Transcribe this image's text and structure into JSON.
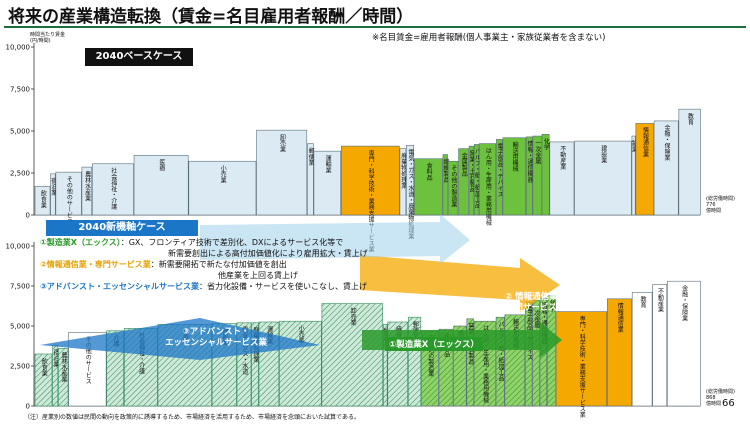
{
  "page": {
    "title": "将来の産業構造転換（賃金=名目雇用者報酬／時間）",
    "subtitle": "※名目賃金=雇用者報酬(個人事業主・家族従業者を含まない)",
    "unit_label": "時間当たり賃金\n(円/時間)",
    "case_base": "2040ベースケース",
    "case_new": "2040新機軸ケース",
    "legend": {
      "l1_key": "①製造業X（エックス）",
      "l1_text": "：GX、フロンティア技術で差別化、DXによるサービス化等で",
      "l1_text2": "新需要創出による高付加価値化により雇用拡大・賃上げ",
      "l2_key": "②情報通信業・専門サービス業",
      "l2_text": "：新需要開拓で新たな付加価値を創出",
      "l2_text2": "他産業を上回る賃上げ",
      "l3_key": "③アドバンスト・エッセンシャルサービス業",
      "l3_text": "：省力化設備・サービスを使いこなし、賃上げ"
    },
    "callouts": {
      "c1": "①製造業X（エックス）",
      "c2": "② 情報通信業、\n専門サービス業",
      "c3": "③アドバンスト・\nエッセンシャルサービス業"
    },
    "hours_base": "(総労働時間)\n776\n億時間",
    "hours_new": "(総労働時間)\n868\n億時間",
    "footnote": "（注）産業別の数値は民間の動向を政策的に誘導するため、市場経済を活用するため、市場経済を念頭においた試算である。",
    "page_number": "66"
  },
  "chart_data": [
    {
      "type": "bar",
      "title": "2040ベースケース",
      "ylabel": "時間当たり賃金(円/時間)",
      "ylim": [
        0,
        10000
      ],
      "yticks": [
        0,
        2500,
        5000,
        7500,
        10000
      ],
      "ytick_labels": [
        "0",
        "2,500",
        "5,000",
        "7,500",
        "10,000"
      ],
      "xlabel": "総労働時間",
      "bars": [
        {
          "label": "飲食業",
          "value": 1700,
          "width": 12,
          "category": "other"
        },
        {
          "label": "宿泊業",
          "value": 2450,
          "width": 4,
          "category": "other"
        },
        {
          "label": "その他のサービス",
          "value": 2550,
          "width": 20,
          "category": "other"
        },
        {
          "label": "農林水産業",
          "value": 2850,
          "width": 8,
          "category": "other"
        },
        {
          "label": "社会福祉・介護",
          "value": 3050,
          "width": 32,
          "category": "other"
        },
        {
          "label": "医療",
          "value": 3550,
          "width": 42,
          "category": "other"
        },
        {
          "label": "小売業",
          "value": 3200,
          "width": 52,
          "category": "other"
        },
        {
          "label": "卸売業",
          "value": 5050,
          "width": 39,
          "category": "other"
        },
        {
          "label": "郵便業",
          "value": 4250,
          "width": 5,
          "category": "other"
        },
        {
          "label": "運輸業",
          "value": 3800,
          "width": 21,
          "category": "other"
        },
        {
          "label": "専門・科学技術・業務支援サービス業",
          "value": 4100,
          "width": 45,
          "category": "info"
        },
        {
          "label": "廃棄物処理業",
          "value": 3950,
          "width": 5,
          "category": "other"
        },
        {
          "label": "電気・ガス・水道・廃棄物処理業",
          "value": 4150,
          "width": 6,
          "category": "other"
        },
        {
          "label": "食料品",
          "value": 3350,
          "width": 22,
          "category": "mfg"
        },
        {
          "label": "繊維製品",
          "value": 3600,
          "width": 4,
          "category": "mfg"
        },
        {
          "label": "その他の製造業",
          "value": 3200,
          "width": 8,
          "category": "mfg"
        },
        {
          "label": "金属製品",
          "value": 3950,
          "width": 8,
          "category": "mfg"
        },
        {
          "label": "窯業・土石製品",
          "value": 4100,
          "width": 4,
          "category": "mfg"
        },
        {
          "label": "パルプ・紙・紙加工品",
          "value": 4200,
          "width": 4,
          "category": "mfg"
        },
        {
          "label": "はん用・生産用・業務用機械",
          "value": 4250,
          "width": 13,
          "category": "mfg"
        },
        {
          "label": "電子部品・デバイス",
          "value": 4500,
          "width": 5,
          "category": "mfg"
        },
        {
          "label": "輸送用機械",
          "value": 4600,
          "width": 18,
          "category": "mfg"
        },
        {
          "label": "情報・通信機器",
          "value": 4650,
          "width": 5,
          "category": "mfg"
        },
        {
          "label": "一次金属",
          "value": 4700,
          "width": 7,
          "category": "mfg"
        },
        {
          "label": "化学",
          "value": 4800,
          "width": 6,
          "category": "mfg"
        },
        {
          "label": "不動産業",
          "value": 4350,
          "width": 19,
          "category": "other"
        },
        {
          "label": "建設業",
          "value": 4400,
          "width": 44,
          "category": "other"
        },
        {
          "label": "鉱業",
          "value": 4700,
          "width": 3,
          "category": "other"
        },
        {
          "label": "情報通信業",
          "value": 5450,
          "width": 14,
          "category": "info"
        },
        {
          "label": "金融・保険業",
          "value": 5600,
          "width": 19,
          "category": "other"
        },
        {
          "label": "教育",
          "value": 6300,
          "width": 17,
          "category": "other"
        }
      ]
    },
    {
      "type": "bar",
      "title": "2040新機軸ケース",
      "ylabel": "時間当たり賃金(円/時間)",
      "ylim": [
        0,
        10000
      ],
      "yticks": [
        0,
        2500,
        5000,
        7500,
        10000
      ],
      "ytick_labels": [
        "0",
        "2,500",
        "5,000",
        "7,500",
        "10,000"
      ],
      "xlabel": "総労働時間",
      "bars": [
        {
          "label": "飲食業",
          "value": 3250,
          "width": 12,
          "category": "ess"
        },
        {
          "label": "宿泊業",
          "value": 3800,
          "width": 4,
          "category": "ess"
        },
        {
          "label": "農林水産業",
          "value": 3600,
          "width": 7,
          "category": "ess"
        },
        {
          "label": "その他のサービス",
          "value": 4600,
          "width": 26,
          "category": "other"
        },
        {
          "label": "介護",
          "value": 4700,
          "width": 12,
          "category": "ess"
        },
        {
          "label": "社会福祉・介護",
          "value": 4850,
          "width": 23,
          "category": "ess"
        },
        {
          "label": "医療",
          "value": 5100,
          "width": 37,
          "category": "ess"
        },
        {
          "label": "建設業",
          "value": 5150,
          "width": 17,
          "category": "ess"
        },
        {
          "label": "電気・ガス・水道",
          "value": 5200,
          "width": 10,
          "category": "ess"
        },
        {
          "label": "廃棄物処理業",
          "value": 5200,
          "width": 5,
          "category": "ess"
        },
        {
          "label": "運輸業",
          "value": 5250,
          "width": 14,
          "category": "ess"
        },
        {
          "label": "小売業",
          "value": 5300,
          "width": 29,
          "category": "ess"
        },
        {
          "label": "卸売業",
          "value": 6400,
          "width": 42,
          "category": "ess"
        },
        {
          "label": "鉱業",
          "value": 5100,
          "width": 3,
          "category": "ess"
        },
        {
          "label": "繊維製品",
          "value": 5250,
          "width": 14,
          "category": "ess"
        },
        {
          "label": "郵便業",
          "value": 5550,
          "width": 9,
          "category": "ess"
        },
        {
          "label": "その他の製造業",
          "value": 4700,
          "width": 12,
          "category": "mfg"
        },
        {
          "label": "金属製品",
          "value": 4800,
          "width": 10,
          "category": "mfg"
        },
        {
          "label": "食料品",
          "value": 5000,
          "width": 9,
          "category": "mfg"
        },
        {
          "label": "窯業・土石製品",
          "value": 5450,
          "width": 5,
          "category": "mfg"
        },
        {
          "label": "はん用・生産用・業務用機械",
          "value": 5300,
          "width": 15,
          "category": "mfg"
        },
        {
          "label": "パルプ・紙・紙加工品",
          "value": 5550,
          "width": 6,
          "category": "mfg"
        },
        {
          "label": "輸送用機械",
          "value": 5700,
          "width": 14,
          "category": "mfg"
        },
        {
          "label": "電子部品・デバイス",
          "value": 6500,
          "width": 5,
          "category": "mfg"
        },
        {
          "label": "一次金属",
          "value": 6600,
          "width": 5,
          "category": "mfg"
        },
        {
          "label": "情報・通信機器",
          "value": 6750,
          "width": 5,
          "category": "mfg"
        },
        {
          "label": "化学",
          "value": 6900,
          "width": 6,
          "category": "mfg"
        },
        {
          "label": "専門・科学技術・業務支援サービス業",
          "value": 5900,
          "width": 35,
          "category": "info"
        },
        {
          "label": "情報通信業",
          "value": 6700,
          "width": 17,
          "category": "info"
        },
        {
          "label": "教育",
          "value": 7100,
          "width": 14,
          "category": "other"
        },
        {
          "label": "不動産業",
          "value": 7600,
          "width": 10,
          "category": "other"
        },
        {
          "label": "金融・保険業",
          "value": 7800,
          "width": 23,
          "category": "other"
        }
      ]
    }
  ],
  "colors": {
    "accent": "#1a6f3c",
    "base_bar": "#dceaf3",
    "base_border": "#5b6f7a",
    "manufacturing": "#6cc23c",
    "info_service": "#f5a800",
    "essential": "#cfe9d8",
    "essential_border": "#2c8a5a",
    "other": "#ffffff",
    "case_new": "#1b76c8"
  }
}
